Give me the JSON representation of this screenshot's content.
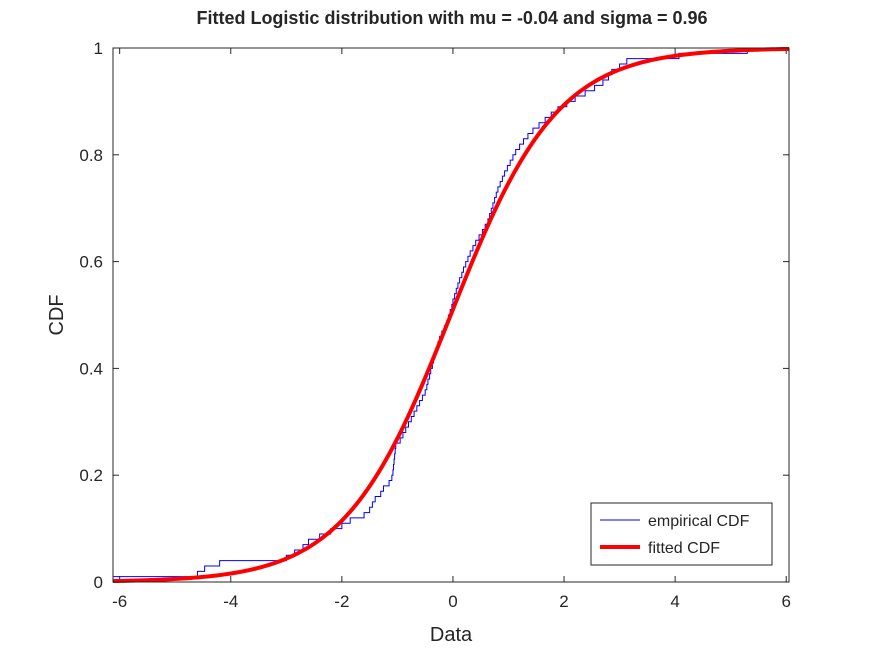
{
  "chart_data": {
    "type": "line",
    "title": "Fitted Logistic distribution with mu = -0.04 and sigma = 0.96",
    "xlabel": "Data",
    "ylabel": "CDF",
    "xlim": [
      -6.12,
      6.05
    ],
    "ylim": [
      0,
      1
    ],
    "xticks": [
      -6,
      -4,
      -2,
      0,
      2,
      4,
      6
    ],
    "xtick_labels": [
      "-6",
      "-4",
      "-2",
      "0",
      "2",
      "4",
      "6"
    ],
    "yticks": [
      0,
      0.2,
      0.4,
      0.6,
      0.8,
      1
    ],
    "ytick_labels": [
      "0",
      "0.2",
      "0.4",
      "0.6",
      "0.8",
      "1"
    ],
    "grid": false,
    "legend_position": "bottom-right",
    "series": [
      {
        "name": "empirical CDF",
        "kind": "step",
        "color": "#0000ff",
        "samples": [
          -6.4,
          -4.6,
          -4.47,
          -4.2,
          -3.0,
          -2.85,
          -2.7,
          -2.6,
          -2.4,
          -2.2,
          -2.0,
          -1.85,
          -1.6,
          -1.5,
          -1.45,
          -1.4,
          -1.3,
          -1.25,
          -1.15,
          -1.1,
          -1.08,
          -1.07,
          -1.06,
          -1.05,
          -1.04,
          -1.03,
          -0.95,
          -0.9,
          -0.85,
          -0.8,
          -0.75,
          -0.7,
          -0.65,
          -0.6,
          -0.55,
          -0.5,
          -0.47,
          -0.45,
          -0.42,
          -0.4,
          -0.37,
          -0.35,
          -0.32,
          -0.3,
          -0.27,
          -0.24,
          -0.2,
          -0.15,
          -0.11,
          -0.08,
          -0.05,
          -0.02,
          0.0,
          0.03,
          0.06,
          0.09,
          0.12,
          0.16,
          0.19,
          0.23,
          0.27,
          0.31,
          0.36,
          0.41,
          0.47,
          0.53,
          0.58,
          0.63,
          0.66,
          0.69,
          0.72,
          0.75,
          0.78,
          0.81,
          0.85,
          0.89,
          0.93,
          0.98,
          1.03,
          1.08,
          1.13,
          1.2,
          1.27,
          1.35,
          1.44,
          1.55,
          1.66,
          1.77,
          1.89,
          2.05,
          2.2,
          2.38,
          2.55,
          2.7,
          2.8,
          2.86,
          3.0,
          3.13,
          4.07,
          5.3
        ]
      },
      {
        "name": "fitted CDF",
        "kind": "logistic",
        "color": "#ff0000",
        "mu": -0.04,
        "sigma": 0.96
      }
    ]
  }
}
